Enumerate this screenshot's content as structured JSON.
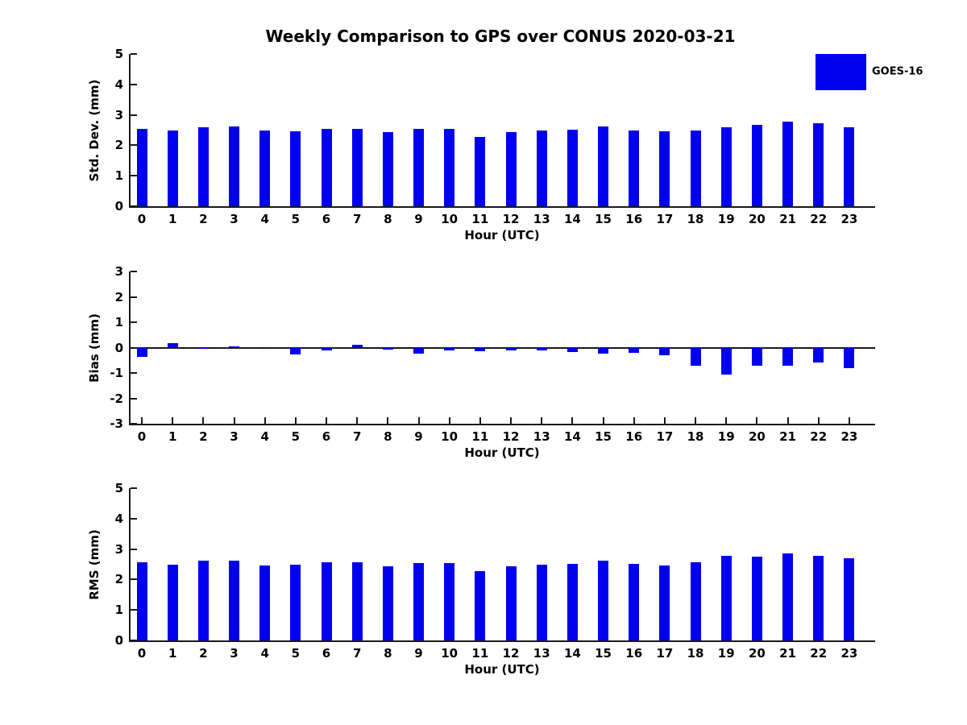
{
  "figure_title": "Weekly Comparison to GPS over CONUS 2020-03-21",
  "legend": {
    "label": "GOES-16",
    "color": "#0000ee",
    "position": "top-right-outside"
  },
  "axis_color": "#1a1a1a",
  "chart_data": [
    {
      "type": "bar",
      "series_name": "GOES-16",
      "bar_color": "#0000ee",
      "ylabel": "Std. Dev. (mm)",
      "xlabel": "Hour (UTC)",
      "categories": [
        "0",
        "1",
        "2",
        "3",
        "4",
        "5",
        "6",
        "7",
        "8",
        "9",
        "10",
        "11",
        "12",
        "13",
        "14",
        "15",
        "16",
        "17",
        "18",
        "19",
        "20",
        "21",
        "22",
        "23"
      ],
      "values": [
        2.54,
        2.5,
        2.59,
        2.61,
        2.48,
        2.47,
        2.53,
        2.55,
        2.44,
        2.53,
        2.53,
        2.27,
        2.43,
        2.5,
        2.51,
        2.61,
        2.5,
        2.46,
        2.48,
        2.59,
        2.67,
        2.77,
        2.73,
        2.58
      ],
      "ylim": [
        0,
        5
      ],
      "yticks": [
        0,
        1,
        2,
        3,
        4,
        5
      ],
      "grid": false,
      "zero_line": false
    },
    {
      "type": "bar",
      "series_name": "GOES-16",
      "bar_color": "#0000ee",
      "ylabel": "Bias (mm)",
      "xlabel": "Hour (UTC)",
      "categories": [
        "0",
        "1",
        "2",
        "3",
        "4",
        "5",
        "6",
        "7",
        "8",
        "9",
        "10",
        "11",
        "12",
        "13",
        "14",
        "15",
        "16",
        "17",
        "18",
        "19",
        "20",
        "21",
        "22",
        "23"
      ],
      "values": [
        -0.35,
        0.18,
        -0.05,
        0.06,
        0.02,
        -0.28,
        -0.1,
        0.1,
        -0.08,
        -0.25,
        -0.1,
        -0.15,
        -0.1,
        -0.1,
        -0.18,
        -0.25,
        -0.2,
        -0.3,
        -0.7,
        -1.05,
        -0.71,
        -0.71,
        -0.58,
        -0.82
      ],
      "ylim": [
        -3,
        3
      ],
      "yticks": [
        -3,
        -2,
        -1,
        0,
        1,
        2,
        3
      ],
      "grid": false,
      "zero_line": true
    },
    {
      "type": "bar",
      "series_name": "GOES-16",
      "bar_color": "#0000ee",
      "ylabel": "RMS (mm)",
      "xlabel": "Hour (UTC)",
      "categories": [
        "0",
        "1",
        "2",
        "3",
        "4",
        "5",
        "6",
        "7",
        "8",
        "9",
        "10",
        "11",
        "12",
        "13",
        "14",
        "15",
        "16",
        "17",
        "18",
        "19",
        "20",
        "21",
        "22",
        "23"
      ],
      "values": [
        2.56,
        2.5,
        2.61,
        2.63,
        2.47,
        2.5,
        2.56,
        2.56,
        2.44,
        2.54,
        2.54,
        2.28,
        2.43,
        2.5,
        2.52,
        2.62,
        2.51,
        2.47,
        2.57,
        2.79,
        2.76,
        2.86,
        2.79,
        2.7
      ],
      "ylim": [
        0,
        5
      ],
      "yticks": [
        0,
        1,
        2,
        3,
        4,
        5
      ],
      "grid": false,
      "zero_line": false
    }
  ]
}
